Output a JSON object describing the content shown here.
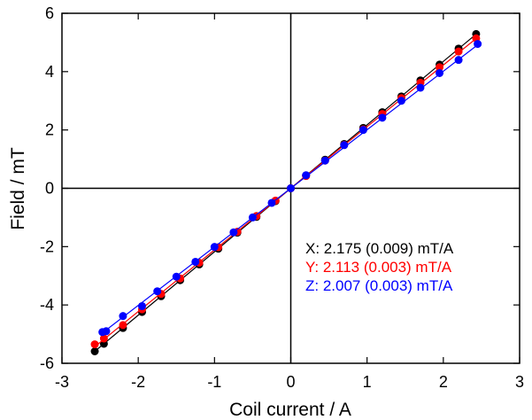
{
  "chart_data": {
    "type": "scatter",
    "xlabel": "Coil current / A",
    "ylabel": "Field / mT",
    "xlim": [
      -3,
      3
    ],
    "ylim": [
      -6,
      6
    ],
    "x_ticks": [
      -3,
      -2,
      -1,
      0,
      1,
      2,
      3
    ],
    "y_ticks": [
      -6,
      -4,
      -2,
      0,
      2,
      4,
      6
    ],
    "x_tick_labels": [
      "-3",
      "-2",
      "-1",
      "0",
      "1",
      "2",
      "3"
    ],
    "y_tick_labels": [
      "-6",
      "-4",
      "-2",
      "0",
      "2",
      "4",
      "6"
    ],
    "grid": false,
    "zero_lines": true,
    "series": [
      {
        "name": "X",
        "color": "#000000",
        "slope": 2.175,
        "x": [
          -2.57,
          -2.45,
          -2.2,
          -1.95,
          -1.7,
          -1.45,
          -1.2,
          -0.95,
          -0.7,
          -0.45,
          -0.2,
          0.0,
          0.2,
          0.45,
          0.7,
          0.95,
          1.2,
          1.45,
          1.7,
          1.95,
          2.2,
          2.43
        ],
        "y": [
          -5.59,
          -5.33,
          -4.79,
          -4.24,
          -3.7,
          -3.15,
          -2.61,
          -2.07,
          -1.52,
          -0.98,
          -0.44,
          0.0,
          0.44,
          0.98,
          1.52,
          2.07,
          2.61,
          3.15,
          3.7,
          4.24,
          4.79,
          5.29
        ]
      },
      {
        "name": "Y",
        "color": "#ff0000",
        "slope": 2.113,
        "x": [
          -2.57,
          -2.45,
          -2.2,
          -1.95,
          -1.7,
          -1.45,
          -1.2,
          -0.95,
          -0.7,
          -0.45,
          -0.2,
          0.0,
          0.2,
          0.45,
          0.7,
          0.95,
          1.2,
          1.45,
          1.7,
          1.95,
          2.2,
          2.43
        ],
        "y": [
          -5.35,
          -5.15,
          -4.69,
          -4.15,
          -3.62,
          -3.09,
          -2.55,
          -2.02,
          -1.49,
          -0.95,
          -0.42,
          0.0,
          0.42,
          0.95,
          1.49,
          2.02,
          2.55,
          3.09,
          3.62,
          4.15,
          4.69,
          5.14
        ]
      },
      {
        "name": "Z",
        "color": "#0000ff",
        "slope": 2.007,
        "x": [
          -2.47,
          -2.42,
          -2.2,
          -1.95,
          -1.75,
          -1.5,
          -1.25,
          -1.0,
          -0.75,
          -0.5,
          -0.25,
          0.0,
          0.2,
          0.45,
          0.7,
          0.95,
          1.2,
          1.45,
          1.7,
          1.95,
          2.2,
          2.45
        ],
        "y": [
          -4.93,
          -4.9,
          -4.38,
          -4.04,
          -3.53,
          -3.03,
          -2.52,
          -2.01,
          -1.51,
          -1.0,
          -0.5,
          0.0,
          0.45,
          0.95,
          1.48,
          2.0,
          2.42,
          3.0,
          3.45,
          3.95,
          4.4,
          4.95
        ]
      }
    ],
    "annotations": [
      {
        "text": "X: 2.175 (0.009) mT/A",
        "color": "#000000"
      },
      {
        "text": "Y: 2.113 (0.003) mT/A",
        "color": "#ff0000"
      },
      {
        "text": "Z: 2.007 (0.003) mT/A",
        "color": "#0000ff"
      }
    ]
  }
}
